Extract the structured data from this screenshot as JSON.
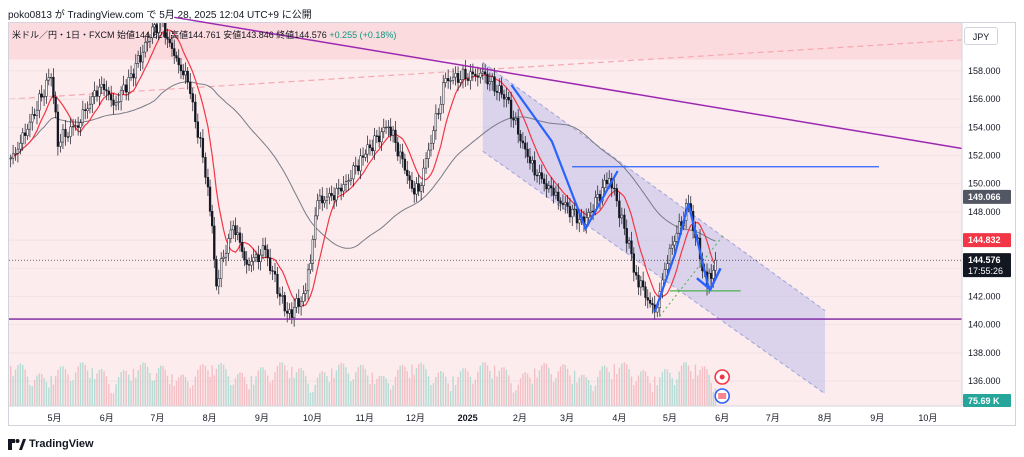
{
  "header": {
    "text": "poko0813 が TradingView.com で 5月 28, 2025 12:04 UTC+9 に公開"
  },
  "legend": {
    "symbol": "米ドル／円・1日・FXCM",
    "open_label": "始値",
    "open": "144.620",
    "high_label": "高値",
    "high": "144.761",
    "low_label": "安値",
    "low": "143.846",
    "close_label": "終値",
    "close": "144.576",
    "change": "+0.255 (+0.18%)"
  },
  "currency": "JPY",
  "footer": {
    "brand": "TradingView"
  },
  "colors": {
    "up": "#089981",
    "down": "#131722",
    "ma_short": "#f23645",
    "ma_long": "#787b86",
    "trend_purple": "#9c27b0",
    "support_purple": "#7b1fa2",
    "channel_fill": "#b2b5e6",
    "pink_zone": "#fcd9dc",
    "blue_line": "#2962ff",
    "green_line": "#4caf50",
    "price_label_bg": "#131722",
    "ma_label_bg": "#f23645",
    "ma_long_label_bg": "#535663",
    "volume_label_bg": "#26a69a"
  },
  "chart_data": {
    "type": "candlestick",
    "title": "米ドル／円・1日・FXCM",
    "ylim": [
      134.8,
      160.2
    ],
    "y_ticks": [
      136.0,
      138.0,
      140.0,
      142.0,
      144.0,
      146.0,
      148.0,
      150.0,
      152.0,
      154.0,
      156.0,
      158.0
    ],
    "x_ticks": [
      "5月",
      "6月",
      "7月",
      "8月",
      "9月",
      "10月",
      "11月",
      "12月",
      "2025",
      "2月",
      "3月",
      "4月",
      "5月",
      "6月",
      "7月",
      "8月",
      "9月",
      "10月"
    ],
    "series_close": [
      {
        "date": "2024-04-05",
        "close": 151.6
      },
      {
        "date": "2024-04-15",
        "close": 153.9
      },
      {
        "date": "2024-04-29",
        "close": 157.8
      },
      {
        "date": "2024-05-03",
        "close": 153.0
      },
      {
        "date": "2024-05-15",
        "close": 154.3
      },
      {
        "date": "2024-05-29",
        "close": 157.2
      },
      {
        "date": "2024-06-05",
        "close": 155.5
      },
      {
        "date": "2024-06-14",
        "close": 157.3
      },
      {
        "date": "2024-06-28",
        "close": 160.8
      },
      {
        "date": "2024-07-03",
        "close": 161.6
      },
      {
        "date": "2024-07-11",
        "close": 159.0
      },
      {
        "date": "2024-07-19",
        "close": 157.3
      },
      {
        "date": "2024-07-31",
        "close": 150.0
      },
      {
        "date": "2024-08-05",
        "close": 143.0
      },
      {
        "date": "2024-08-15",
        "close": 147.2
      },
      {
        "date": "2024-08-23",
        "close": 144.3
      },
      {
        "date": "2024-09-03",
        "close": 145.2
      },
      {
        "date": "2024-09-16",
        "close": 140.6
      },
      {
        "date": "2024-09-27",
        "close": 142.2
      },
      {
        "date": "2024-10-04",
        "close": 148.7
      },
      {
        "date": "2024-10-18",
        "close": 149.5
      },
      {
        "date": "2024-10-31",
        "close": 152.0
      },
      {
        "date": "2024-11-15",
        "close": 154.2
      },
      {
        "date": "2024-11-29",
        "close": 149.8
      },
      {
        "date": "2024-12-03",
        "close": 149.5
      },
      {
        "date": "2024-12-19",
        "close": 157.4
      },
      {
        "date": "2025-01-10",
        "close": 157.8
      },
      {
        "date": "2025-01-24",
        "close": 156.0
      },
      {
        "date": "2025-02-07",
        "close": 151.4
      },
      {
        "date": "2025-02-21",
        "close": 149.2
      },
      {
        "date": "2025-03-11",
        "close": 147.2
      },
      {
        "date": "2025-03-26",
        "close": 150.5
      },
      {
        "date": "2025-04-04",
        "close": 146.9
      },
      {
        "date": "2025-04-11",
        "close": 143.5
      },
      {
        "date": "2025-04-22",
        "close": 140.8
      },
      {
        "date": "2025-05-01",
        "close": 145.3
      },
      {
        "date": "2025-05-12",
        "close": 148.5
      },
      {
        "date": "2025-05-23",
        "close": 142.7
      },
      {
        "date": "2025-05-28",
        "close": 144.576
      }
    ],
    "annotations": {
      "horizontal_support": 140.4,
      "horizontal_resistance_blue": 151.2,
      "green_level": 142.4,
      "down_trendline": [
        {
          "date": "2024-07-11",
          "value": 161.8
        },
        {
          "date": "2025-10-15",
          "value": 152.5
        }
      ],
      "pink_zone_top": 160.2,
      "pink_zone_upper_line_start": 156.0,
      "channel": {
        "upper": [
          {
            "date": "2025-01-10",
            "value": 158.6
          },
          {
            "date": "2025-08-01",
            "value": 141.0
          }
        ],
        "lower": [
          {
            "date": "2025-01-10",
            "value": 152.3
          },
          {
            "date": "2025-08-01",
            "value": 135.1
          }
        ]
      }
    },
    "price_labels": {
      "ma_long_value": "149.066",
      "ma_short_value": "144.832",
      "last_price": "144.576",
      "countdown": "17:55:26",
      "volume": "75.69 K"
    }
  }
}
